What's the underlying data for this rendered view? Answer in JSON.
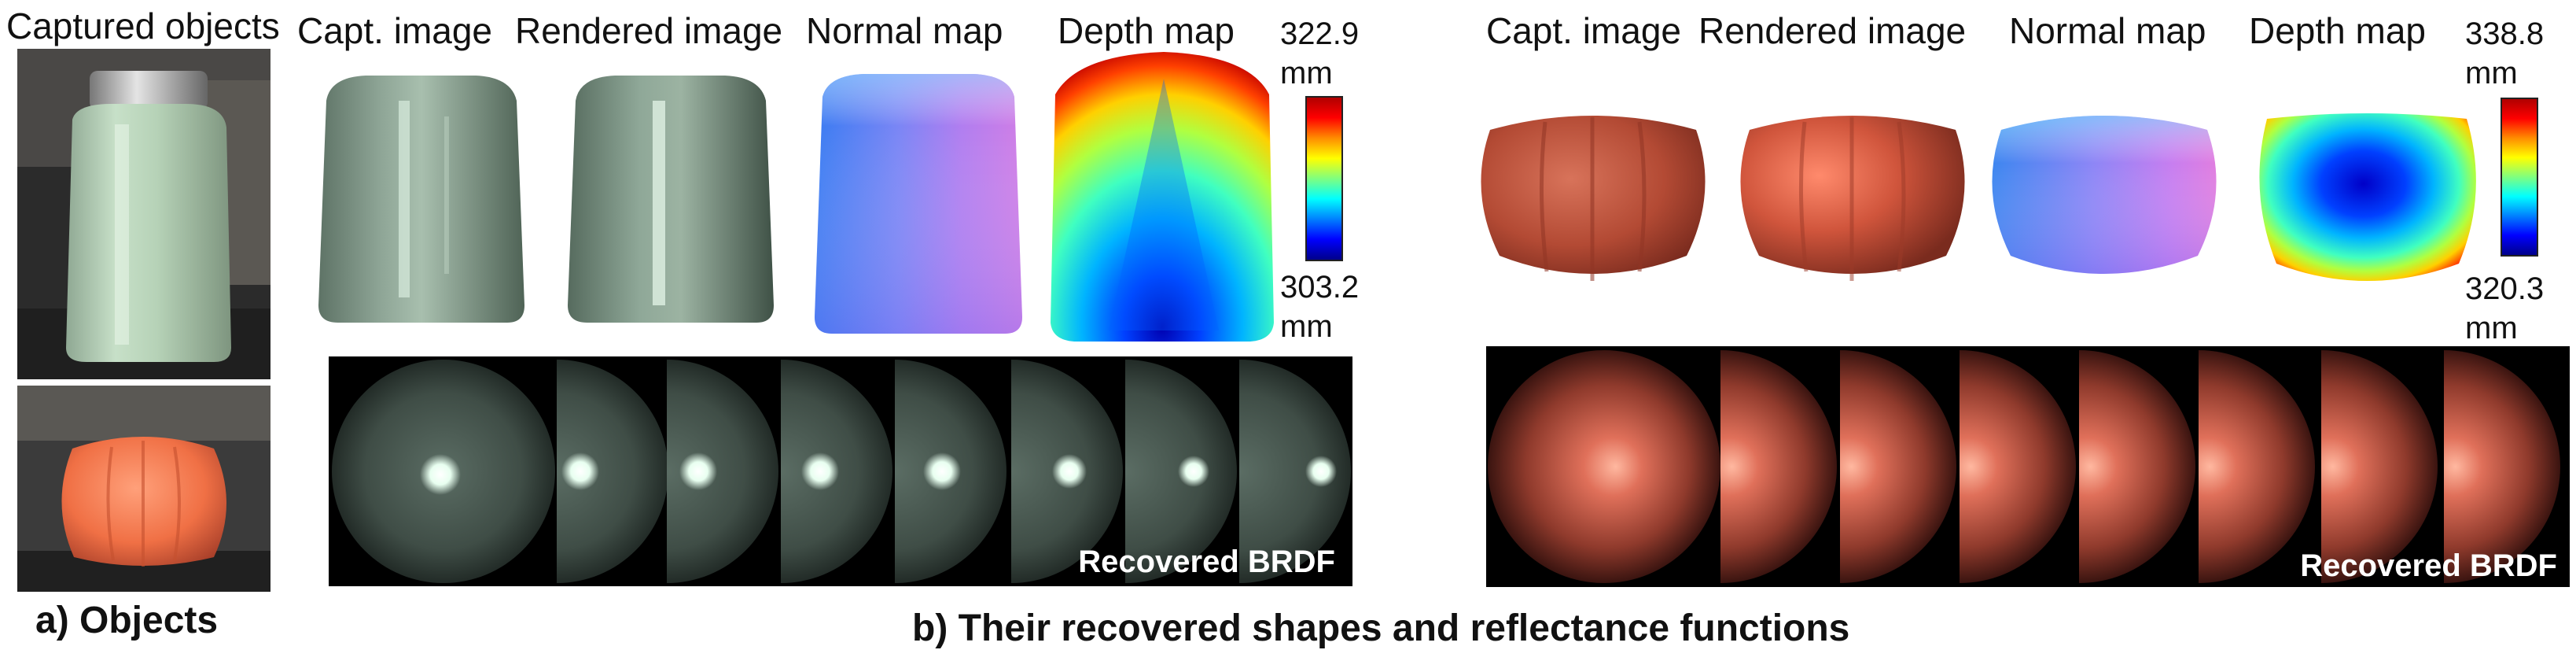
{
  "panel_a": {
    "title": "Captured objects",
    "caption": "a) Objects"
  },
  "panel_b": {
    "caption": "b) Their recovered shapes and reflectance functions",
    "jar": {
      "labels": [
        "Capt. image",
        "Rendered image",
        "Normal map",
        "Depth map"
      ],
      "depth_max": "322.9",
      "depth_min": "303.2",
      "unit": "mm",
      "brdf_label": "Recovered BRDF"
    },
    "pumpkin": {
      "labels": [
        "Capt. image",
        "Rendered image",
        "Normal map",
        "Depth map"
      ],
      "depth_max": "338.8",
      "depth_min": "320.3",
      "unit": "mm",
      "brdf_label": "Recovered BRDF"
    }
  },
  "colors": {
    "jar_body": "#9fb8a6",
    "pumpkin_body": "#c0533b",
    "colormap": "jet"
  }
}
